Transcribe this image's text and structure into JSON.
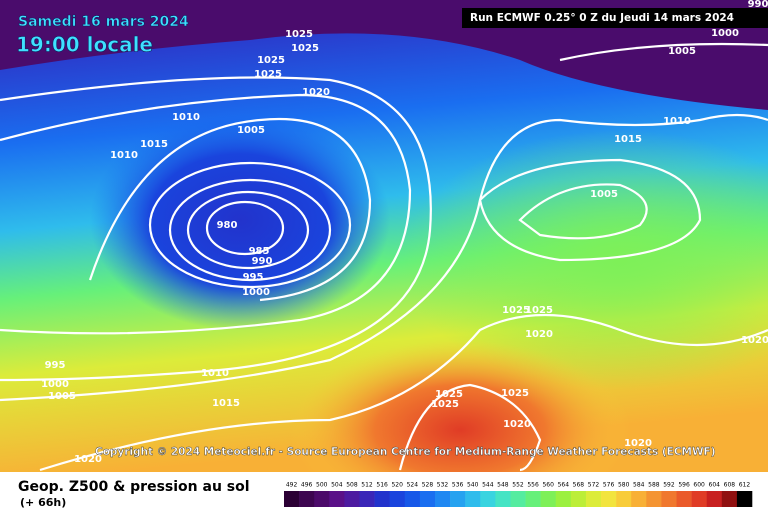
{
  "header": {
    "date": "Samedi 16 mars 2024",
    "time": "19:00 locale",
    "run": "Run ECMWF 0.25° 0 Z du Jeudi 14 mars 2024",
    "copyright": "Copyright © 2024 Meteociel.fr - Source European Centre for Medium-Range Weather Forecasts (ECMWF)"
  },
  "footer": {
    "title": "Geop. Z500 & pression au sol",
    "lead": "(+ 66h)"
  },
  "isobar_labels": [
    1025,
    1025,
    1025,
    1025,
    1020,
    1010,
    1005,
    1015,
    1010,
    980,
    985,
    990,
    995,
    1000,
    1000,
    1005,
    1010,
    1015,
    1005,
    1025,
    1025,
    1020,
    1020,
    995,
    1000,
    1005,
    1010,
    1015,
    1025,
    1025,
    1025,
    1020,
    1020,
    1020,
    990
  ],
  "colorbar": {
    "ticks": [
      492,
      496,
      500,
      504,
      508,
      512,
      516,
      520,
      524,
      528,
      532,
      536,
      540,
      544,
      548,
      552,
      556,
      560,
      564,
      568,
      572,
      576,
      580,
      584,
      588,
      592,
      596,
      600,
      604,
      608,
      612
    ],
    "colors": [
      "#2b0034",
      "#3d0550",
      "#4c0a6a",
      "#5a1088",
      "#4d1aa0",
      "#3a26b8",
      "#2233cc",
      "#1a44dd",
      "#1758e8",
      "#1a6ef0",
      "#1f88f2",
      "#26a2f0",
      "#2fbcec",
      "#39d4e0",
      "#45e4c4",
      "#55eca0",
      "#66f07a",
      "#7ef058",
      "#9cf040",
      "#bcee38",
      "#dcec3a",
      "#f2e43e",
      "#f8cc3a",
      "#f8b036",
      "#f49432",
      "#f0782e",
      "#ea5a2a",
      "#e03c26",
      "#c82020",
      "#901010",
      "#000000"
    ]
  }
}
